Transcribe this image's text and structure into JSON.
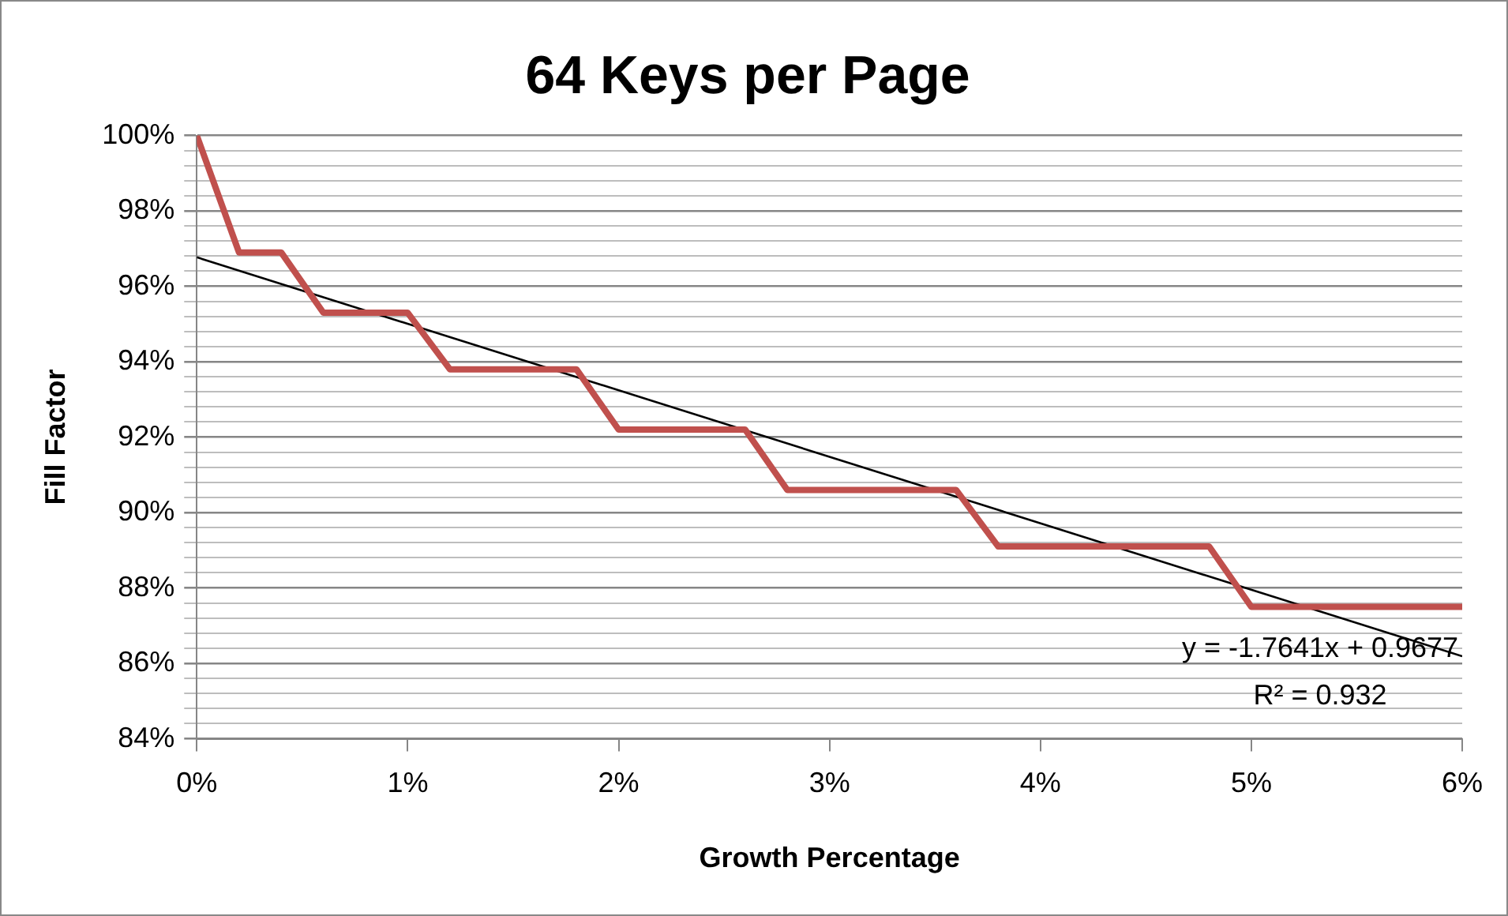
{
  "chart_data": {
    "type": "line",
    "title": "64 Keys per Page",
    "xlabel": "Growth Percentage",
    "ylabel": "Fill Factor",
    "x": [
      0,
      0.2,
      0.4,
      0.6,
      0.8,
      1.0,
      1.2,
      1.4,
      1.6,
      1.8,
      2.0,
      2.2,
      2.4,
      2.6,
      2.8,
      3.0,
      3.2,
      3.4,
      3.6,
      3.8,
      4.0,
      4.2,
      4.4,
      4.6,
      4.8,
      5.0,
      5.2,
      5.4,
      5.6,
      5.8,
      6.0
    ],
    "series": [
      {
        "color": "#c0504d",
        "values": [
          100,
          96.9,
          96.9,
          95.3,
          95.3,
          95.3,
          93.8,
          93.8,
          93.8,
          93.8,
          92.2,
          92.2,
          92.2,
          92.2,
          90.6,
          90.6,
          90.6,
          90.6,
          90.6,
          89.1,
          89.1,
          89.1,
          89.1,
          89.1,
          89.1,
          87.5,
          87.5,
          87.5,
          87.5,
          87.5,
          87.5
        ]
      },
      {
        "type": "line",
        "color": "#000000",
        "x": [
          0,
          6
        ],
        "values": [
          96.77,
          86.19
        ]
      }
    ],
    "xlim": [
      0,
      6
    ],
    "xticks": [
      {
        "value": 0,
        "label": "0%"
      },
      {
        "value": 1,
        "label": "1%"
      },
      {
        "value": 2,
        "label": "2%"
      },
      {
        "value": 3,
        "label": "3%"
      },
      {
        "value": 4,
        "label": "4%"
      },
      {
        "value": 5,
        "label": "5%"
      },
      {
        "value": 6,
        "label": "6%"
      }
    ],
    "ylim": [
      84,
      100
    ],
    "yticks": [
      {
        "value": 84,
        "label": "84%"
      },
      {
        "value": 84.4,
        "label": null
      },
      {
        "value": 84.8,
        "label": null
      },
      {
        "value": 85.2,
        "label": null
      },
      {
        "value": 85.6,
        "label": null
      },
      {
        "value": 86,
        "label": "86%"
      },
      {
        "value": 86.4,
        "label": null
      },
      {
        "value": 86.8,
        "label": null
      },
      {
        "value": 87.2,
        "label": null
      },
      {
        "value": 87.6,
        "label": null
      },
      {
        "value": 88,
        "label": "88%"
      },
      {
        "value": 88.4,
        "label": null
      },
      {
        "value": 88.8,
        "label": null
      },
      {
        "value": 89.2,
        "label": null
      },
      {
        "value": 89.6,
        "label": null
      },
      {
        "value": 90,
        "label": "90%"
      },
      {
        "value": 90.4,
        "label": null
      },
      {
        "value": 90.8,
        "label": null
      },
      {
        "value": 91.2,
        "label": null
      },
      {
        "value": 91.6,
        "label": null
      },
      {
        "value": 92,
        "label": "92%"
      },
      {
        "value": 92.4,
        "label": null
      },
      {
        "value": 92.8,
        "label": null
      },
      {
        "value": 93.2,
        "label": null
      },
      {
        "value": 93.6,
        "label": null
      },
      {
        "value": 94,
        "label": "94%"
      },
      {
        "value": 94.4,
        "label": null
      },
      {
        "value": 94.8,
        "label": null
      },
      {
        "value": 95.2,
        "label": null
      },
      {
        "value": 95.6,
        "label": null
      },
      {
        "value": 96,
        "label": "96%"
      },
      {
        "value": 96.4,
        "label": null
      },
      {
        "value": 96.8,
        "label": null
      },
      {
        "value": 97.2,
        "label": null
      },
      {
        "value": 97.6,
        "label": null
      },
      {
        "value": 98,
        "label": "98%"
      },
      {
        "value": 98.4,
        "label": null
      },
      {
        "value": 98.8,
        "label": null
      },
      {
        "value": 99.2,
        "label": null
      },
      {
        "value": 99.6,
        "label": null
      },
      {
        "value": 100,
        "label": "100%"
      }
    ],
    "grid": "y",
    "marker": "none",
    "line_style": "solid",
    "annotations": [
      "y = -1.7641x + 0.9677",
      "R² = 0.932"
    ]
  }
}
